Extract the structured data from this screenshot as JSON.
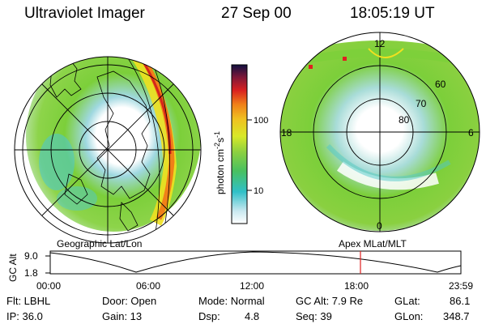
{
  "header": {
    "title": "Ultraviolet Imager",
    "date": "27 Sep 00",
    "time": "18:05:19 UT"
  },
  "colorbar": {
    "label_main": "photon cm",
    "label_exp1": "-2",
    "label_mid": "s",
    "label_exp2": "-1",
    "tick_100": "100",
    "tick_10": "10"
  },
  "left_panel": {
    "caption": "Geographic Lat/Lon"
  },
  "right_panel": {
    "caption": "Apex MLat/MLT",
    "mlt_top": "12",
    "mlt_left": "18",
    "mlt_right": "6",
    "mlt_bottom": "0",
    "lat_60": "60",
    "lat_70": "70",
    "lat_80": "80"
  },
  "altitude_strip": {
    "y_axis_label": "GC Alt",
    "y_max_label": "9.0",
    "y_min_label": "1.8",
    "x_ticks": [
      "00:00",
      "06:00",
      "12:00",
      "18:00",
      "23:59"
    ]
  },
  "status": {
    "flt": "Flt: LBHL",
    "ip": "IP: 36.0",
    "door": "Door: Open",
    "gain": "Gain: 13",
    "mode": "Mode: Normal",
    "dsp_label": "Dsp:",
    "dsp_value": "4.8",
    "gc_alt": "GC Alt: 7.9 Re",
    "seq": "Seq: 39",
    "glat_label": "GLat:",
    "glat_value": "86.1",
    "glon_label": "GLon:",
    "glon_value": "348.7"
  },
  "colors": {
    "aurora_green": "#7ccf3a",
    "aurora_cyan": "#4fc8c8",
    "aurora_yellow": "#f0e020",
    "aurora_red": "#d4241c",
    "marker_red": "#e02020"
  }
}
